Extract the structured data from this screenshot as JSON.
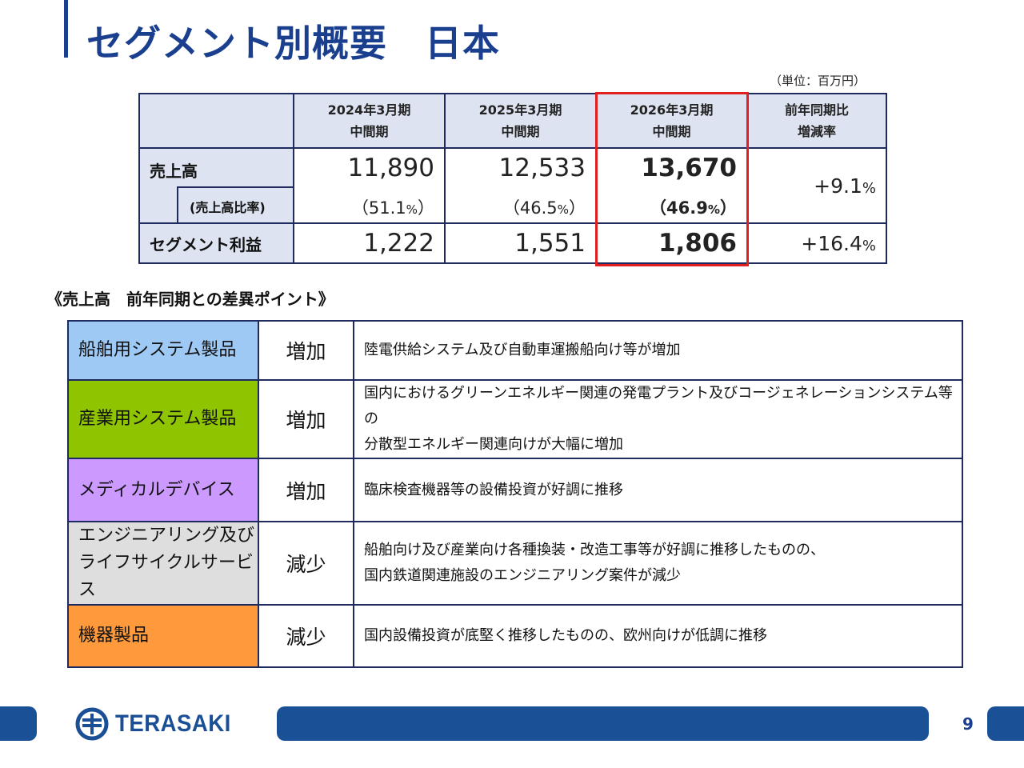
{
  "page": {
    "title": "セグメント別概要　日本",
    "unit_note": "（単位：百万円）",
    "page_number": "9"
  },
  "summary": {
    "headers": [
      {
        "line1": "2024年3月期",
        "line2": "中間期"
      },
      {
        "line1": "2025年3月期",
        "line2": "中間期"
      },
      {
        "line1": "2026年3月期",
        "line2": "中間期"
      },
      {
        "line1": "前年同期比",
        "line2": "増減率"
      }
    ],
    "sales": {
      "label": "売上高",
      "values": [
        "11,890",
        "12,533",
        "13,670"
      ],
      "change_num": "+9.1",
      "change_unit": "%"
    },
    "ratio": {
      "label": "(売上高比率)",
      "values": [
        {
          "open": "（",
          "num": "51.1",
          "unit": "%",
          "close": "）"
        },
        {
          "open": "（",
          "num": "46.5",
          "unit": "%",
          "close": "）"
        },
        {
          "open": "（",
          "num": "46.9",
          "unit": "%",
          "close": "）"
        }
      ]
    },
    "profit": {
      "label": "セグメント利益",
      "values": [
        "1,222",
        "1,551",
        "1,806"
      ],
      "change_num": "+16.4",
      "change_unit": "%"
    },
    "highlight_color": "#e02020"
  },
  "section_heading": "《売上高　前年同期との差異ポイント》",
  "details": [
    {
      "segment": [
        "船舶用システム製品"
      ],
      "direction": "増加",
      "description": [
        "陸電供給システム及び自動車運搬船向け等が増加"
      ],
      "color": "#9ec9f5"
    },
    {
      "segment": [
        "産業用システム製品"
      ],
      "direction": "増加",
      "description": [
        "国内におけるグリーンエネルギー関連の発電プラント及びコージェネレーションシステム等の",
        "分散型エネルギー関連向けが大幅に増加"
      ],
      "color": "#8fc400"
    },
    {
      "segment": [
        "メディカルデバイス"
      ],
      "direction": "増加",
      "description": [
        "臨床検査機器等の設備投資が好調に推移"
      ],
      "color": "#cc99ff"
    },
    {
      "segment": [
        "エンジニアリング及び",
        "ライフサイクルサービス"
      ],
      "direction": "減少",
      "description": [
        "船舶向け及び産業向け各種換装・改造工事等が好調に推移したものの、",
        "国内鉄道関連施設のエンジニアリング案件が減少"
      ],
      "color": "#dedede"
    },
    {
      "segment": [
        "機器製品"
      ],
      "direction": "減少",
      "description": [
        "国内設備投資が底堅く推移したものの、欧州向けが低調に推移"
      ],
      "color": "#ff9a3c"
    }
  ],
  "footer": {
    "logo_text": "TERASAKI",
    "logo_icon": "terasaki-logo-icon",
    "bar_color": "#1a5096"
  }
}
